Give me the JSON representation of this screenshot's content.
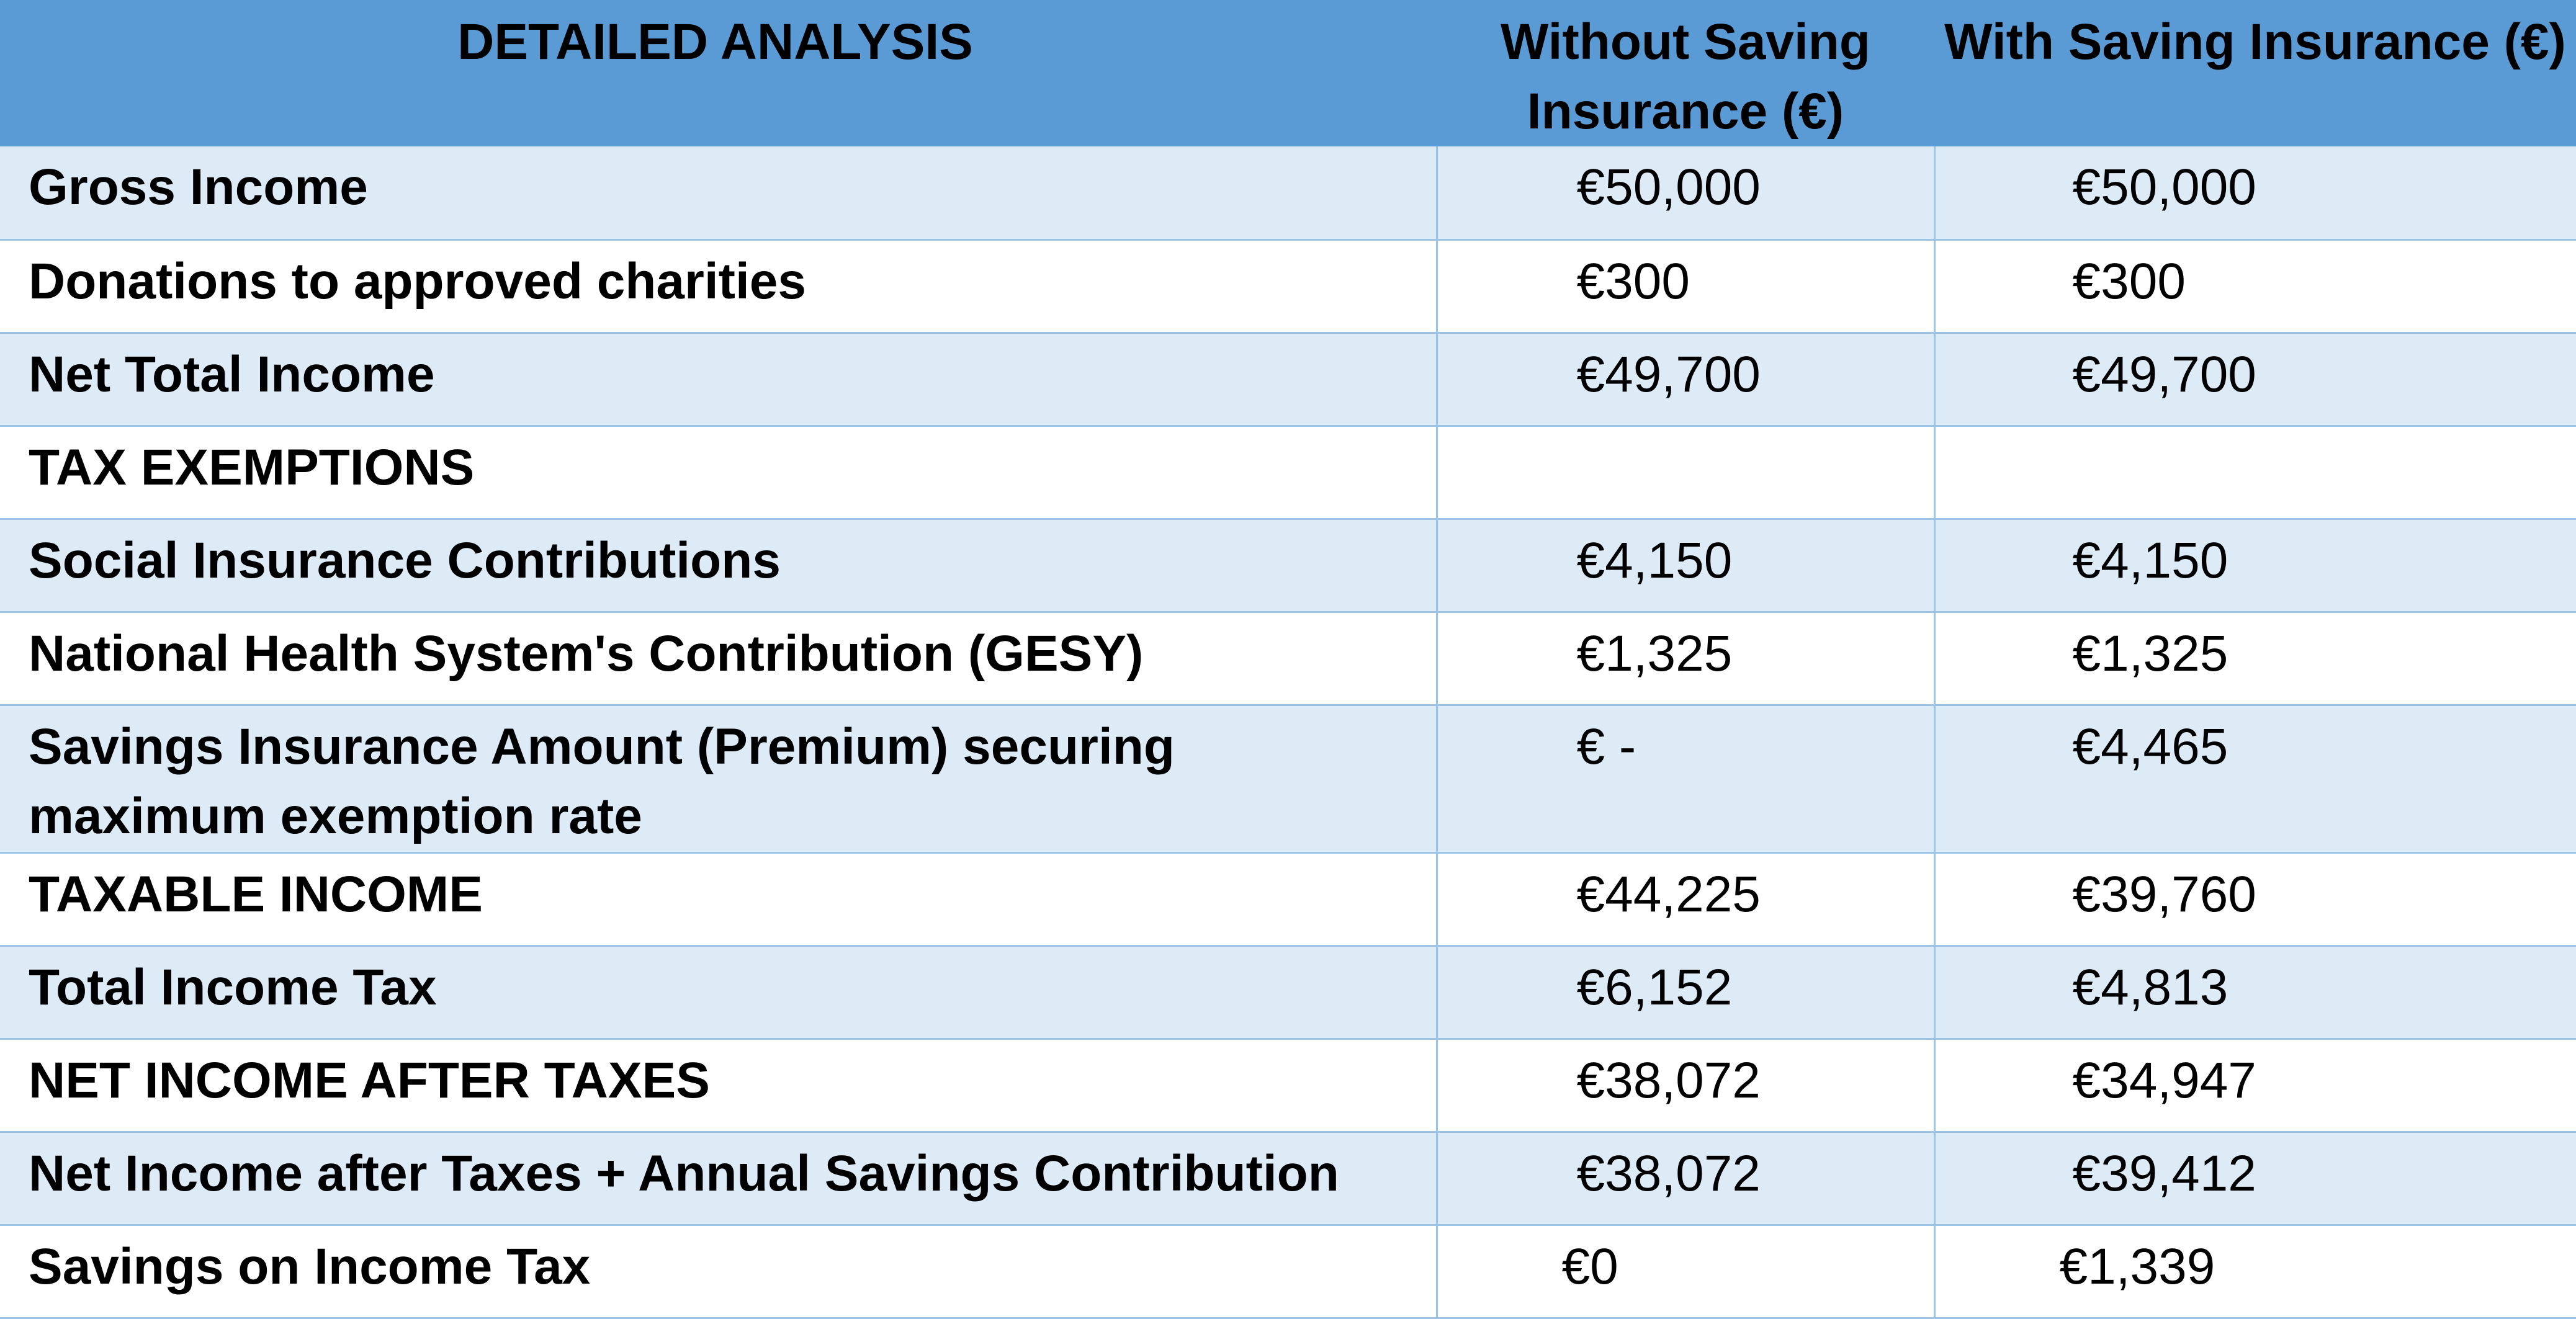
{
  "header": {
    "col1": "DETAILED ANALYSIS",
    "col2": "Without Saving Insurance (€)",
    "col3": "With Saving Insurance (€)"
  },
  "rows": [
    {
      "label": "Gross Income",
      "without": "€50,000",
      "with": "€50,000"
    },
    {
      "label": "Donations to approved charities",
      "without": "€300",
      "with": "€300"
    },
    {
      "label": "Net Total Income",
      "without": "€49,700",
      "with": "€49,700"
    },
    {
      "label": "TAX EXEMPTIONS",
      "without": "",
      "with": ""
    },
    {
      "label": "Social Insurance Contributions",
      "without": "€4,150",
      "with": "€4,150"
    },
    {
      "label": "National Health System's Contribution (GESY)",
      "without": "€1,325",
      "with": "€1,325"
    },
    {
      "label": "Savings Insurance Amount (Premium) securing maximum exemption rate",
      "without": "€ -",
      "with": "€4,465"
    },
    {
      "label": "TAXABLE INCOME",
      "without": "€44,225",
      "with": "€39,760"
    },
    {
      "label": "Total Income Tax",
      "without": "€6,152",
      "with": "€4,813"
    },
    {
      "label": "NET INCOME AFTER TAXES",
      "without": "€38,072",
      "with": "€34,947"
    },
    {
      "label": "Net Income after Taxes + Annual Savings Contribution",
      "without": "€38,072",
      "with": "€39,412"
    },
    {
      "label": "Savings on Income Tax",
      "without": "€0",
      "with": "€1,339"
    }
  ],
  "colors": {
    "header_bg": "#5b9bd5",
    "band_bg": "#ddebf7",
    "border": "#9dc3e6"
  }
}
